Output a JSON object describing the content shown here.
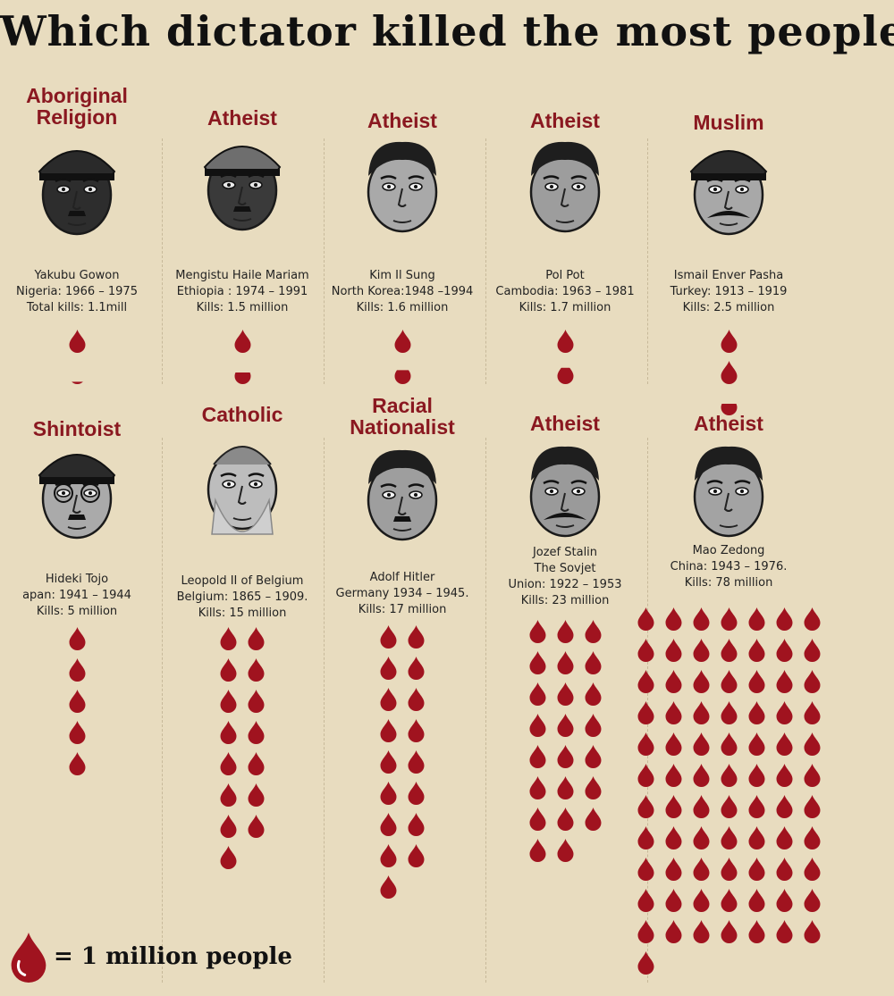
{
  "title": "Which dictator killed the most people?",
  "legend": {
    "text": "= 1 million people",
    "icon": "blood-drop-icon"
  },
  "colors": {
    "background": "#e8dcbf",
    "religion": "#8a1820",
    "drop": "#a0131f"
  },
  "chart_data": {
    "type": "pictogram",
    "unit": "1 million people",
    "dictators": [
      {
        "religion": "Aboriginal Religion",
        "name": "Yakubu Gowon",
        "country_line": "Nigeria: 1966 – 1975",
        "kills_label": "Total kills: 1.1mill",
        "kills_millions": 1.1
      },
      {
        "religion": "Atheist",
        "name": "Mengistu Haile Mariam",
        "country_line": "Ethiopia : 1974 – 1991",
        "kills_label": "Kills: 1.5 million",
        "kills_millions": 1.5
      },
      {
        "religion": "Atheist",
        "name": "Kim Il Sung",
        "country_line": "North Korea:1948 –1994",
        "kills_label": "Kills: 1.6 million",
        "kills_millions": 1.6
      },
      {
        "religion": "Atheist",
        "name": "Pol Pot",
        "country_line": "Cambodia: 1963 – 1981",
        "kills_label": "Kills: 1.7 million",
        "kills_millions": 1.7
      },
      {
        "religion": "Muslim",
        "name": "Ismail Enver Pasha",
        "country_line": "Turkey: 1913 – 1919",
        "kills_label": "Kills: 2.5 million",
        "kills_millions": 2.5
      },
      {
        "religion": "Shintoist",
        "name": "Hideki Tojo",
        "country_line": "apan: 1941 – 1944",
        "kills_label": "Kills: 5 million",
        "kills_millions": 5
      },
      {
        "religion": "Catholic",
        "name": "Leopold II of Belgium",
        "country_line": "Belgium: 1865 – 1909.",
        "kills_label": "Kills: 15 million",
        "kills_millions": 15
      },
      {
        "religion": "Racial Nationalist",
        "name": "Adolf Hitler",
        "country_line": "Germany 1934 – 1945.",
        "kills_label": "Kills: 17 million",
        "kills_millions": 17
      },
      {
        "religion": "Atheist",
        "name": "Jozef Stalin",
        "name_line2": "The Sovjet",
        "country_line": "Union: 1922 – 1953",
        "kills_label": "Kills: 23 million",
        "kills_millions": 23
      },
      {
        "religion": "Atheist",
        "name": "Mao Zedong",
        "country_line": "China: 1943 – 1976.",
        "kills_label": "Kills: 78 million",
        "kills_millions": 78
      }
    ]
  }
}
